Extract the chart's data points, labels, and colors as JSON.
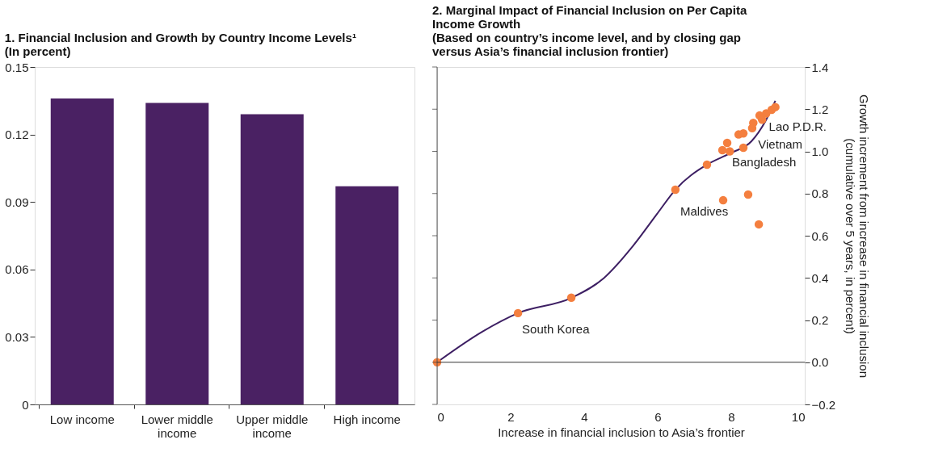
{
  "chart_data": [
    {
      "type": "bar",
      "title": [
        "1. Financial Inclusion and Growth by Country Income Levels¹",
        "(In percent)"
      ],
      "categories": [
        "Low income",
        "Lower middle income",
        "Upper middle income",
        "High income"
      ],
      "values": [
        0.136,
        0.134,
        0.129,
        0.097
      ],
      "color": "#4a2163",
      "ylim": [
        0,
        0.15
      ],
      "yticks": [
        0,
        0.03,
        0.06,
        0.09,
        0.12,
        0.15
      ],
      "grid": false
    },
    {
      "type": "scatter",
      "title": [
        "2. Marginal Impact of Financial Inclusion on Per Capita",
        "Income Growth",
        "(Based on country’s income level, and by closing gap",
        "versus Asia’s financial inclusion frontier)"
      ],
      "xlabel": "Increase in financial inclusion to Asia’s frontier",
      "ylabel": [
        "Growth increment from increase in financial inclusion",
        "(cumulative over 5 years, in percent)"
      ],
      "series": [
        {
          "type": "line",
          "marker": "none",
          "color": "#3d1f63",
          "x": [
            0,
            1.23,
            2.2,
            3.66,
            4.53,
            5.32,
            5.98,
            6.48,
            7.34,
            7.96,
            8.55,
            8.92,
            9.2
          ],
          "values": [
            0,
            0.145,
            0.233,
            0.306,
            0.398,
            0.55,
            0.703,
            0.818,
            0.937,
            0.99,
            1.048,
            1.14,
            1.24
          ]
        },
        {
          "type": "scatter",
          "marker": "circle",
          "color": "#f47f3f",
          "x": [
            0,
            2.2,
            3.65,
            6.48,
            7.34,
            7.76,
            7.89,
            7.96,
            8.2,
            8.33,
            8.33,
            8.57,
            8.6,
            8.77,
            8.84,
            8.95,
            9.1,
            9.2,
            7.78,
            8.46,
            8.75
          ],
          "values": [
            0,
            0.233,
            0.306,
            0.818,
            0.937,
            1.006,
            1.04,
            1.0,
            1.08,
            1.085,
            1.017,
            1.11,
            1.135,
            1.17,
            1.15,
            1.18,
            1.197,
            1.21,
            0.768,
            0.795,
            0.654
          ]
        }
      ],
      "xlim": [
        0,
        10
      ],
      "xticks": [
        0,
        2,
        4,
        6,
        8,
        10
      ],
      "ylim": [
        -0.2,
        1.4
      ],
      "yticks": [
        {
          "value": -0.2,
          "label": "−0.2"
        },
        {
          "value": 0,
          "label": "0.0"
        },
        0.2,
        0.4,
        0.6,
        0.8,
        {
          "value": 1,
          "label": "1.0"
        },
        1.2,
        1.4
      ],
      "ref_lines": [
        {
          "axis": "y",
          "value": 0,
          "label": null,
          "color": "#333333"
        }
      ],
      "annotations": [
        {
          "text": "South Korea",
          "x": 2.2,
          "y": 0.233
        },
        {
          "text": "Maldives",
          "x": 7.78,
          "y": 0.768
        },
        {
          "text": "Bangladesh",
          "x": 8.33,
          "y": 1.017
        },
        {
          "text": "Vietnam",
          "x": 8.6,
          "y": 1.135
        },
        {
          "text": "Lao P.D.R.",
          "x": 9.2,
          "y": 1.21
        }
      ],
      "grid": false
    }
  ]
}
